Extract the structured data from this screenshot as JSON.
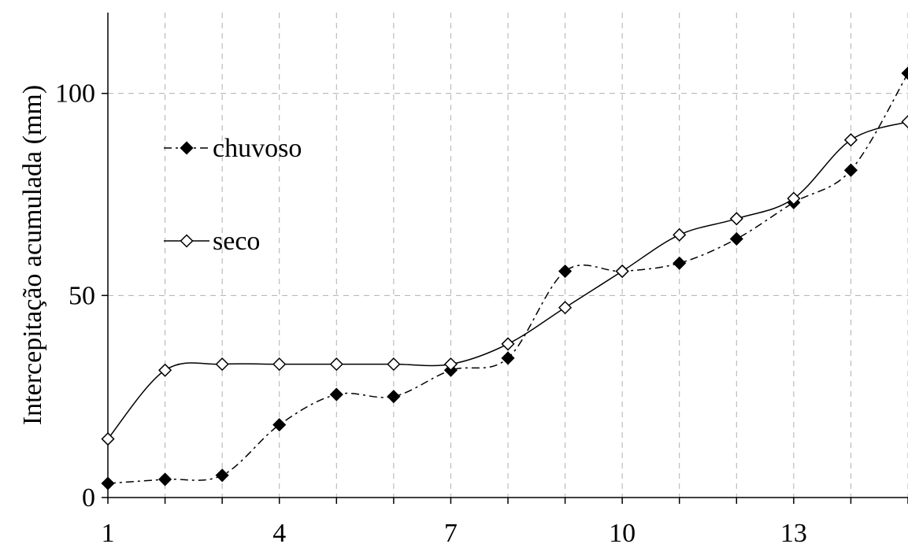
{
  "chart_data": {
    "type": "line",
    "title": "",
    "xlabel": "",
    "ylabel": "Intercepitação acumulada (mm)",
    "x": [
      1,
      2,
      3,
      4,
      5,
      6,
      7,
      8,
      9,
      10,
      11,
      12,
      13,
      14,
      15
    ],
    "x_tick_labels": [
      "1",
      "4",
      "7",
      "10",
      "13"
    ],
    "x_ticks": [
      1,
      4,
      7,
      10,
      13
    ],
    "y_tick_labels": [
      "0",
      "50",
      "100"
    ],
    "y_ticks": [
      0,
      50,
      100
    ],
    "xlim": [
      1,
      15
    ],
    "ylim": [
      0,
      120
    ],
    "grid": true,
    "legend_position": "left",
    "series": [
      {
        "name": "chuvoso",
        "marker": "filled-diamond",
        "line_style": "dash-dot",
        "values": [
          3.5,
          4.5,
          5.5,
          18,
          25.5,
          25,
          31.5,
          34.5,
          56,
          56,
          58,
          64,
          73,
          81,
          105
        ]
      },
      {
        "name": "seco",
        "marker": "open-diamond",
        "line_style": "solid",
        "values": [
          14.5,
          31.5,
          33,
          33,
          33,
          33,
          33,
          38,
          47,
          56,
          65,
          69,
          74,
          88.5,
          93
        ]
      }
    ]
  }
}
